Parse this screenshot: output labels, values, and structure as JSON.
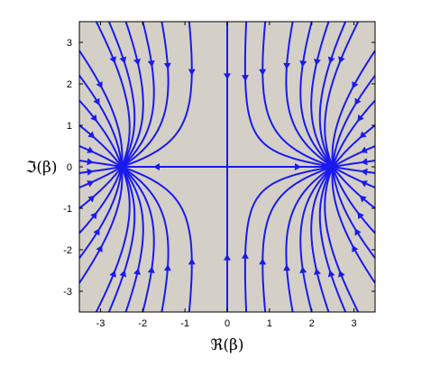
{
  "chart_data": {
    "type": "streamplot",
    "title": "",
    "xlabel": "ℜ(β)",
    "ylabel": "ℑ(β)",
    "xlim": [
      -3.5,
      3.5
    ],
    "ylim": [
      -3.5,
      3.5
    ],
    "x_ticks": [
      -3,
      -2,
      -1,
      0,
      1,
      2,
      3
    ],
    "y_ticks": [
      -3,
      -2,
      -1,
      0,
      1,
      2,
      3
    ],
    "x_tick_labels": [
      "-3",
      "-2",
      "-1",
      "0",
      "1",
      "2",
      "3"
    ],
    "y_tick_labels": [
      "-3",
      "-2",
      "-1",
      "0",
      "1",
      "2",
      "3"
    ],
    "grid": false,
    "background_color": "#d4d0c8",
    "line_color": "#1a1aee",
    "stagnation_points": [
      {
        "x": -2.5,
        "y": 0
      },
      {
        "x": 2.5,
        "y": 0
      }
    ],
    "field": {
      "description_of_flow": "Flow emanates from the source-like region near the origin along the real axis toward the two nodes at x = ±2.5; the vertical streamlines come in from the top and bottom edges and bend horizontally into the nodes.",
      "node_x": 2.5
    }
  }
}
